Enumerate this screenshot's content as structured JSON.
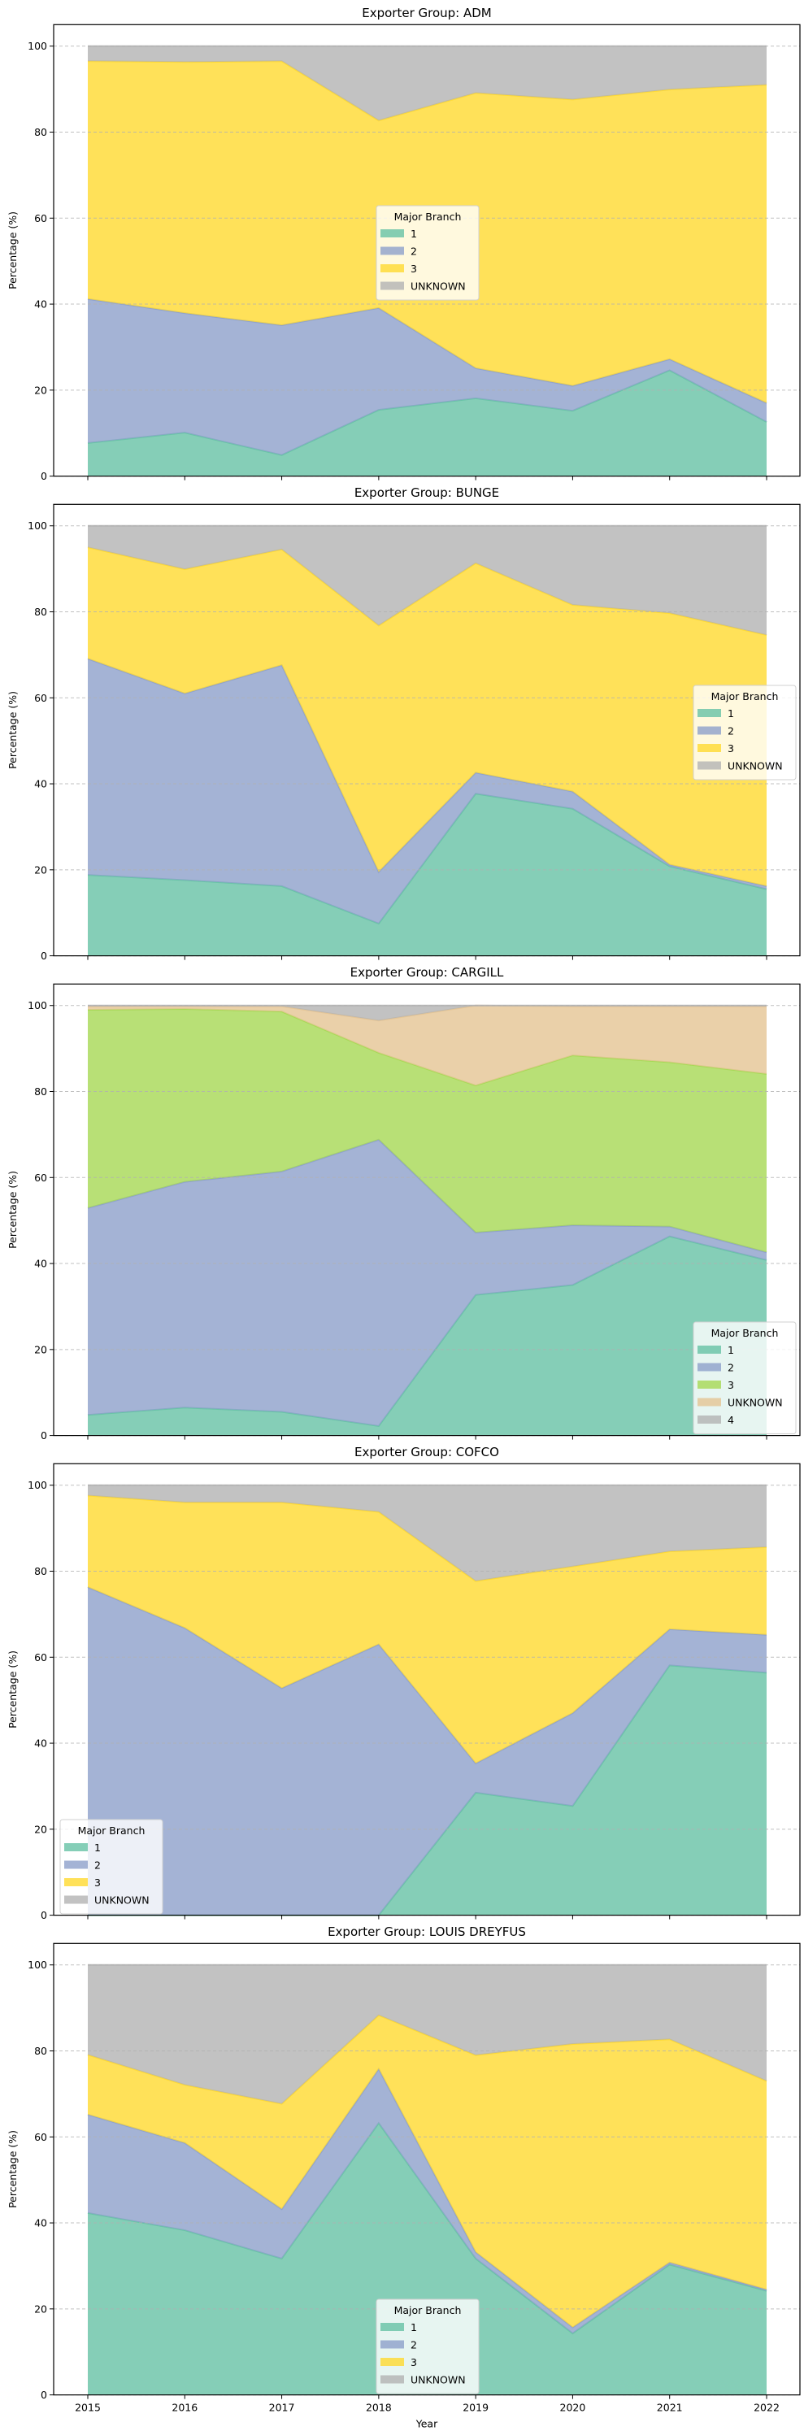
{
  "chart_data": [
    {
      "type": "area",
      "stacked": true,
      "title": "Exporter Group: ADM",
      "ylabel": "Percentage (%)",
      "x": [
        2015,
        2016,
        2017,
        2018,
        2019,
        2020,
        2021,
        2022
      ],
      "ylim": [
        0,
        105
      ],
      "yticks": [
        0,
        20,
        40,
        60,
        80,
        100
      ],
      "grid": true,
      "legend_title": "Major Branch",
      "legend_placement": "center",
      "series": [
        {
          "name": "1",
          "color": "#66c2a5",
          "values": [
            7.7,
            10.1,
            4.9,
            15.4,
            18.1,
            15.2,
            24.6,
            12.6
          ]
        },
        {
          "name": "2",
          "color": "#8da0cb",
          "values": [
            33.5,
            27.8,
            30.2,
            23.7,
            7.0,
            5.8,
            2.6,
            4.4
          ]
        },
        {
          "name": "3",
          "color": "#ffd92f",
          "values": [
            55.3,
            58.4,
            61.4,
            43.6,
            64.0,
            66.6,
            62.7,
            74.0
          ]
        },
        {
          "name": "UNKNOWN",
          "color": "#b3b3b3",
          "values": [
            3.5,
            3.7,
            3.5,
            17.3,
            10.9,
            12.4,
            10.1,
            9.0
          ]
        }
      ]
    },
    {
      "type": "area",
      "stacked": true,
      "title": "Exporter Group: BUNGE",
      "ylabel": "Percentage (%)",
      "x": [
        2015,
        2016,
        2017,
        2018,
        2019,
        2020,
        2021,
        2022
      ],
      "ylim": [
        0,
        105
      ],
      "yticks": [
        0,
        20,
        40,
        60,
        80,
        100
      ],
      "grid": true,
      "legend_title": "Major Branch",
      "legend_placement": "center-right",
      "series": [
        {
          "name": "1",
          "color": "#66c2a5",
          "values": [
            18.8,
            17.6,
            16.2,
            7.5,
            37.7,
            34.2,
            20.8,
            15.5
          ]
        },
        {
          "name": "2",
          "color": "#8da0cb",
          "values": [
            50.3,
            43.4,
            51.4,
            12.0,
            4.9,
            4.0,
            0.4,
            0.7
          ]
        },
        {
          "name": "3",
          "color": "#ffd92f",
          "values": [
            25.9,
            28.9,
            26.9,
            57.3,
            48.7,
            43.4,
            58.5,
            58.4
          ]
        },
        {
          "name": "UNKNOWN",
          "color": "#b3b3b3",
          "values": [
            5.0,
            10.1,
            5.5,
            23.2,
            8.7,
            18.4,
            20.3,
            25.4
          ]
        }
      ]
    },
    {
      "type": "area",
      "stacked": true,
      "title": "Exporter Group: CARGILL",
      "ylabel": "Percentage (%)",
      "x": [
        2015,
        2016,
        2017,
        2018,
        2019,
        2020,
        2021,
        2022
      ],
      "ylim": [
        0,
        105
      ],
      "yticks": [
        0,
        20,
        40,
        60,
        80,
        100
      ],
      "grid": true,
      "legend_title": "Major Branch",
      "legend_placement": "lower-right",
      "series": [
        {
          "name": "1",
          "color": "#66c2a5",
          "values": [
            4.8,
            6.5,
            5.5,
            2.2,
            32.7,
            35.0,
            46.3,
            40.8
          ]
        },
        {
          "name": "2",
          "color": "#8da0cb",
          "values": [
            48.1,
            52.5,
            55.9,
            66.6,
            14.5,
            13.9,
            2.3,
            1.8
          ]
        },
        {
          "name": "3",
          "color": "#a6d854",
          "values": [
            46.1,
            40.2,
            37.2,
            20.2,
            34.2,
            39.5,
            38.2,
            41.5
          ]
        },
        {
          "name": "UNKNOWN",
          "color": "#e5c494",
          "values": [
            0.8,
            0.6,
            1.2,
            7.5,
            18.6,
            11.4,
            13.0,
            15.7
          ]
        },
        {
          "name": "4",
          "color": "#b3b3b3",
          "values": [
            0.2,
            0.2,
            0.2,
            3.5,
            0.0,
            0.2,
            0.2,
            0.2
          ]
        }
      ]
    },
    {
      "type": "area",
      "stacked": true,
      "title": "Exporter Group: COFCO",
      "ylabel": "Percentage (%)",
      "x": [
        2015,
        2016,
        2017,
        2018,
        2019,
        2020,
        2021,
        2022
      ],
      "ylim": [
        0,
        105
      ],
      "yticks": [
        0,
        20,
        40,
        60,
        80,
        100
      ],
      "grid": true,
      "legend_title": "Major Branch",
      "legend_placement": "lower-left",
      "series": [
        {
          "name": "1",
          "color": "#66c2a5",
          "values": [
            0,
            0,
            0,
            0,
            28.5,
            25.4,
            58.1,
            56.4
          ]
        },
        {
          "name": "2",
          "color": "#8da0cb",
          "values": [
            76.3,
            66.8,
            52.8,
            63.0,
            6.8,
            21.6,
            8.4,
            8.8
          ]
        },
        {
          "name": "3",
          "color": "#ffd92f",
          "values": [
            21.3,
            29.2,
            43.2,
            30.8,
            42.4,
            34.1,
            18.1,
            20.4
          ]
        },
        {
          "name": "UNKNOWN",
          "color": "#b3b3b3",
          "values": [
            2.4,
            4.0,
            4.0,
            6.2,
            22.3,
            18.9,
            15.4,
            14.4
          ]
        }
      ]
    },
    {
      "type": "area",
      "stacked": true,
      "title": "Exporter Group: LOUIS DREYFUS",
      "xlabel": "Year",
      "ylabel": "Percentage (%)",
      "x": [
        2015,
        2016,
        2017,
        2018,
        2019,
        2020,
        2021,
        2022
      ],
      "ylim": [
        0,
        105
      ],
      "yticks": [
        0,
        20,
        40,
        60,
        80,
        100
      ],
      "grid": true,
      "legend_title": "Major Branch",
      "legend_placement": "lower-center",
      "series": [
        {
          "name": "1",
          "color": "#66c2a5",
          "values": [
            42.3,
            38.3,
            31.7,
            63.2,
            31.7,
            14.3,
            30.3,
            24.2
          ]
        },
        {
          "name": "2",
          "color": "#8da0cb",
          "values": [
            22.9,
            20.3,
            11.5,
            12.6,
            1.5,
            1.4,
            0.5,
            0.3
          ]
        },
        {
          "name": "3",
          "color": "#ffd92f",
          "values": [
            13.9,
            13.5,
            24.5,
            12.5,
            45.8,
            65.9,
            51.9,
            48.5
          ]
        },
        {
          "name": "UNKNOWN",
          "color": "#b3b3b3",
          "values": [
            20.9,
            27.9,
            32.3,
            11.7,
            21.0,
            18.4,
            17.3,
            27.0
          ]
        }
      ]
    }
  ]
}
